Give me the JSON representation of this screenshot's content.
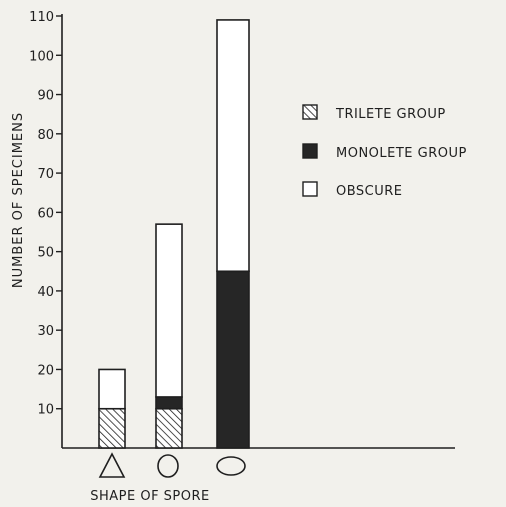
{
  "colors": {
    "ink": "#1f1f1f",
    "background": "#f2f1ec",
    "monolete": "#262626",
    "obscure": "#ffffff"
  },
  "chart_data": {
    "type": "bar",
    "stacked": true,
    "categories": [
      "triangle-shape-icon",
      "circle-shape-icon",
      "ellipse-shape-icon"
    ],
    "series": [
      {
        "name": "TRILETE GROUP",
        "pattern": "hatched",
        "values": [
          10,
          10,
          0
        ]
      },
      {
        "name": "MONOLETE GROUP",
        "pattern": "solid-dark",
        "values": [
          0,
          3,
          45
        ]
      },
      {
        "name": "OBSCURE",
        "pattern": "open",
        "values": [
          10,
          44,
          64
        ]
      }
    ],
    "xlabel": "SHAPE OF SPORE",
    "ylabel": "NUMBER OF SPECIMENS",
    "ylim": [
      0,
      110
    ],
    "yticks": [
      "10",
      "20",
      "30",
      "40",
      "50",
      "60",
      "70",
      "80",
      "90",
      "100",
      "110"
    ],
    "grid": false,
    "legend_position": "right"
  }
}
